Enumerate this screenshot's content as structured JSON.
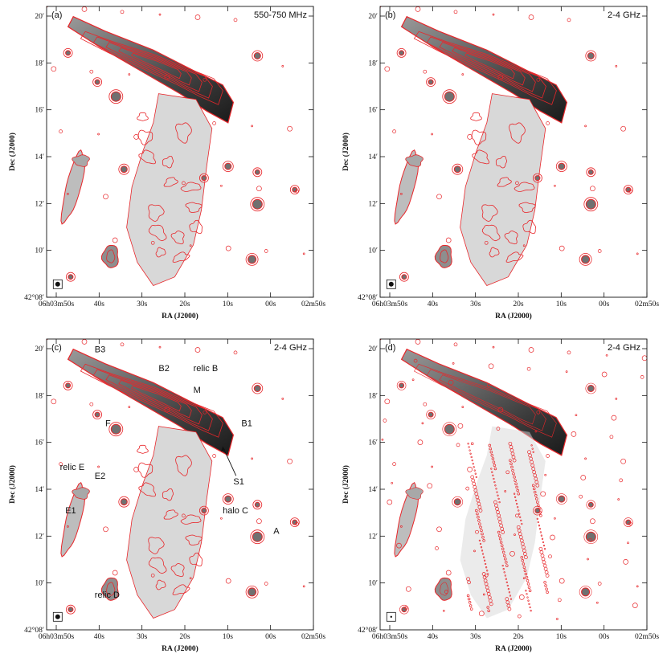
{
  "figure": {
    "xlabel": "RA (J2000)",
    "ylabel": "Dec (J2000)",
    "dec_ticks": [
      "20′",
      "18′",
      "16′",
      "14′",
      "12′",
      "10′",
      "42°08′"
    ],
    "ra_ticks": [
      "06h03m50s",
      "40s",
      "30s",
      "20s",
      "10s",
      "00s",
      "02m50s"
    ],
    "contour_color": "#e8262a",
    "panels": [
      {
        "id": "a",
        "tag": "(a)",
        "freq": "550-750 MHz"
      },
      {
        "id": "b",
        "tag": "(b)",
        "freq": "2-4 GHz"
      },
      {
        "id": "c",
        "tag": "(c)",
        "freq": "2-4 GHz"
      },
      {
        "id": "d",
        "tag": "(d)",
        "freq": "2-4 GHz"
      }
    ],
    "annotations": {
      "B3": "B3",
      "B2": "B2",
      "relicB": "relic B",
      "M": "M",
      "B1": "B1",
      "F": "F",
      "S1": "S1",
      "relicE": "relic E",
      "E2": "E2",
      "E1": "E1",
      "haloC": "halo C",
      "A": "A",
      "relicD": "relic D"
    }
  }
}
